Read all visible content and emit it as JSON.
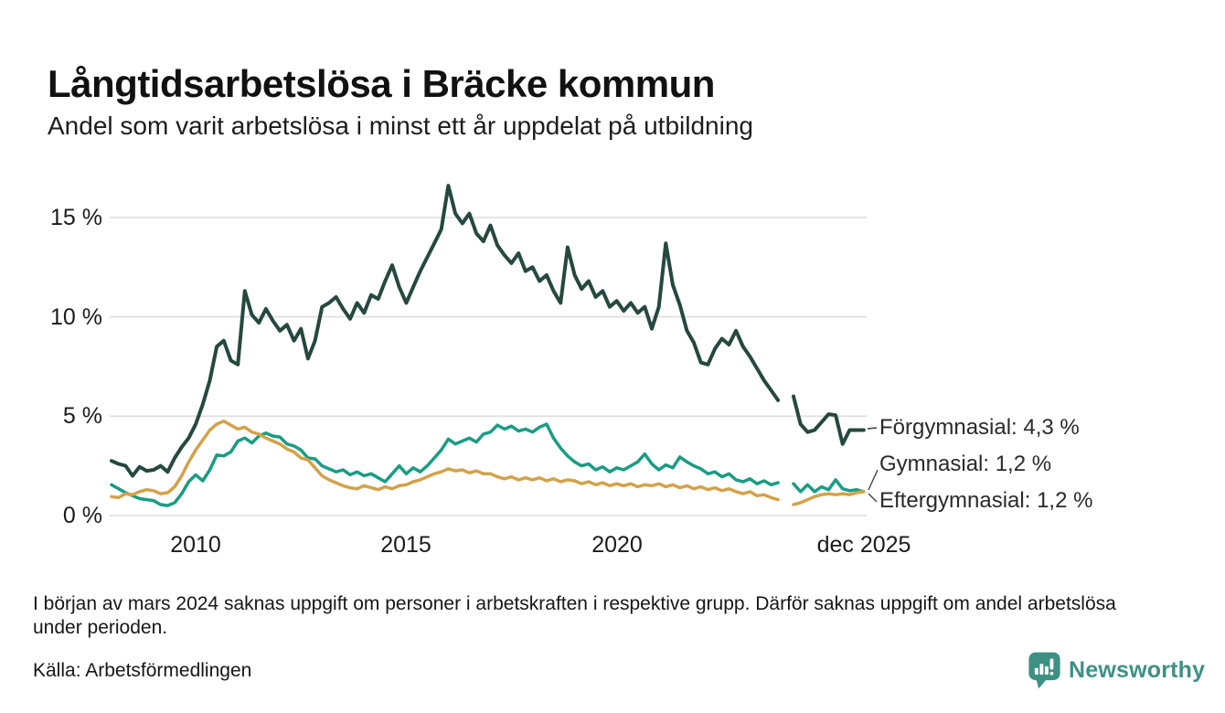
{
  "header": {
    "title": "Långtidsarbetslösa i Bräcke kommun",
    "subtitle": "Andel som varit arbetslösa i minst ett år uppdelat på utbildning"
  },
  "chart_data": {
    "type": "line",
    "title": "Långtidsarbetslösa i Bräcke kommun",
    "subtitle": "Andel som varit arbetslösa i minst ett år uppdelat på utbildning",
    "unit": "%",
    "ylim": [
      0,
      17
    ],
    "x_range": [
      2008,
      2025.92
    ],
    "grid": "horizontal",
    "legend_position": "right-end-labels",
    "missing_data_period": "mars 2024",
    "x_step_years": 0.1666667,
    "y_axis": {
      "ticks": [
        {
          "label": "0 %",
          "value": 0
        },
        {
          "label": "5 %",
          "value": 5
        },
        {
          "label": "10 %",
          "value": 10
        },
        {
          "label": "15 %",
          "value": 15
        }
      ]
    },
    "x_axis": {
      "ticks": [
        {
          "label": "2010",
          "year": 2010
        },
        {
          "label": "2015",
          "year": 2015
        },
        {
          "label": "2020",
          "year": 2020
        },
        {
          "label": "dec 2025",
          "year": 2025.87
        }
      ]
    },
    "series": [
      {
        "name": "Förgymnasial",
        "end_label": "Förgymnasial: 4,3 %",
        "latest_value": "4,3 %",
        "color": "#25483f",
        "segments": [
          {
            "x_start": 2008.0,
            "values": [
              2.75,
              2.6,
              2.5,
              2.0,
              2.45,
              2.25,
              2.3,
              2.5,
              2.2,
              2.9,
              3.45,
              3.9,
              4.6,
              5.6,
              6.8,
              8.5,
              8.8,
              7.8,
              7.6,
              11.3,
              10.1,
              9.7,
              10.4,
              9.8,
              9.3,
              9.6,
              8.8,
              9.4,
              7.9,
              8.8,
              10.5,
              10.7,
              11.0,
              10.4,
              9.9,
              10.7,
              10.2,
              11.1,
              10.9,
              11.8,
              12.6,
              11.5,
              10.7,
              11.5,
              12.3,
              13.0,
              13.7,
              14.4,
              16.6,
              15.2,
              14.7,
              15.2,
              14.2,
              13.8,
              14.6,
              13.6,
              13.1,
              12.7,
              13.2,
              12.3,
              12.5,
              11.8,
              12.1,
              11.3,
              10.7,
              13.5,
              12.1,
              11.4,
              11.8,
              11.0,
              11.3,
              10.5,
              10.8,
              10.3,
              10.7,
              10.2,
              10.5,
              9.4,
              10.5,
              13.7,
              11.6,
              10.6,
              9.3,
              8.7,
              7.7,
              7.6,
              8.4,
              8.9,
              8.6,
              9.3,
              8.5,
              8.0,
              7.4,
              6.8,
              6.3,
              5.8
            ]
          },
          {
            "x_start": 2024.2,
            "values": [
              6.0,
              4.6,
              4.2,
              4.3,
              4.7,
              5.1,
              5.05,
              3.6,
              4.3,
              4.3,
              4.3
            ]
          }
        ]
      },
      {
        "name": "Gymnasial",
        "end_label": "Gymnasial: 1,2 %",
        "latest_value": "1,2 %",
        "color": "#1a9c84",
        "segments": [
          {
            "x_start": 2008.0,
            "values": [
              1.55,
              1.35,
              1.15,
              1.0,
              0.85,
              0.8,
              0.75,
              0.55,
              0.5,
              0.65,
              1.1,
              1.7,
              2.05,
              1.75,
              2.3,
              3.05,
              3.0,
              3.2,
              3.75,
              3.9,
              3.65,
              4.0,
              4.15,
              4.0,
              3.95,
              3.6,
              3.5,
              3.3,
              2.9,
              2.85,
              2.5,
              2.35,
              2.2,
              2.3,
              2.05,
              2.2,
              2.0,
              2.1,
              1.9,
              1.7,
              2.1,
              2.5,
              2.1,
              2.4,
              2.2,
              2.5,
              2.9,
              3.3,
              3.85,
              3.6,
              3.75,
              3.9,
              3.7,
              4.1,
              4.2,
              4.55,
              4.35,
              4.5,
              4.25,
              4.35,
              4.2,
              4.45,
              4.6,
              3.9,
              3.4,
              3.0,
              2.7,
              2.5,
              2.6,
              2.3,
              2.45,
              2.2,
              2.4,
              2.3,
              2.5,
              2.7,
              3.1,
              2.6,
              2.3,
              2.55,
              2.4,
              2.95,
              2.7,
              2.5,
              2.35,
              2.1,
              2.2,
              1.95,
              2.1,
              1.8,
              1.7,
              1.85,
              1.6,
              1.75,
              1.55,
              1.65
            ]
          },
          {
            "x_start": 2024.2,
            "values": [
              1.6,
              1.2,
              1.55,
              1.2,
              1.45,
              1.3,
              1.8,
              1.35,
              1.25,
              1.3,
              1.2
            ]
          }
        ]
      },
      {
        "name": "Eftergymnasial",
        "end_label": "Eftergymnasial: 1,2 %",
        "latest_value": "1,2 %",
        "color": "#d2a24b",
        "segments": [
          {
            "x_start": 2008.0,
            "values": [
              0.95,
              0.9,
              1.1,
              1.05,
              1.2,
              1.3,
              1.25,
              1.1,
              1.15,
              1.45,
              2.0,
              2.7,
              3.3,
              3.8,
              4.3,
              4.6,
              4.75,
              4.55,
              4.35,
              4.45,
              4.2,
              4.1,
              3.9,
              3.75,
              3.6,
              3.35,
              3.2,
              2.9,
              2.8,
              2.4,
              2.0,
              1.8,
              1.65,
              1.5,
              1.4,
              1.35,
              1.5,
              1.4,
              1.3,
              1.45,
              1.35,
              1.5,
              1.55,
              1.7,
              1.8,
              1.95,
              2.1,
              2.2,
              2.35,
              2.25,
              2.3,
              2.15,
              2.25,
              2.1,
              2.1,
              1.95,
              1.85,
              1.95,
              1.8,
              1.9,
              1.8,
              1.9,
              1.75,
              1.85,
              1.7,
              1.8,
              1.75,
              1.6,
              1.7,
              1.55,
              1.65,
              1.5,
              1.6,
              1.5,
              1.6,
              1.45,
              1.55,
              1.5,
              1.6,
              1.45,
              1.55,
              1.4,
              1.5,
              1.35,
              1.45,
              1.3,
              1.4,
              1.25,
              1.35,
              1.2,
              1.1,
              1.2,
              1.0,
              1.05,
              0.9,
              0.8
            ]
          },
          {
            "x_start": 2024.2,
            "values": [
              0.55,
              0.65,
              0.8,
              0.95,
              1.05,
              1.1,
              1.05,
              1.1,
              1.05,
              1.15,
              1.2
            ]
          }
        ]
      }
    ]
  },
  "footer": {
    "note": "I början av mars 2024 saknas uppgift om personer i arbetskraften i respektive grupp. Därför saknas uppgift om andel arbetslösa under perioden.",
    "source": "Källa: Arbetsförmedlingen"
  },
  "branding": {
    "logo_text": "Newsworthy",
    "logo_color": "#3c9184"
  }
}
